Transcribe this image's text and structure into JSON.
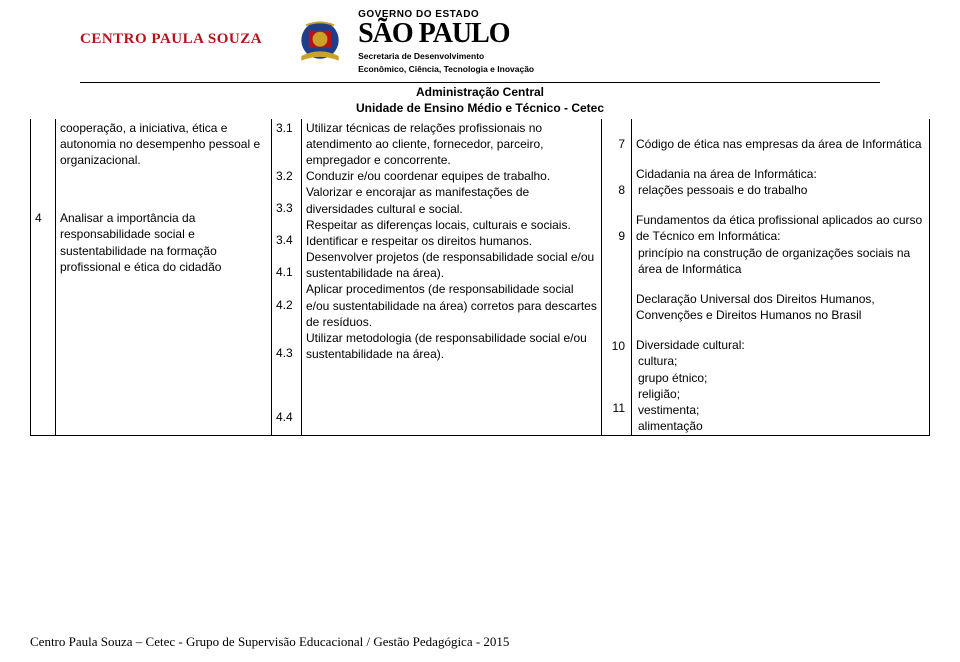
{
  "header": {
    "cps": "CENTRO PAULA SOUZA",
    "gov_line": "GOVERNO DO ESTADO",
    "sao_paulo": "SÃO PAULO",
    "secretaria1": "Secretaria de Desenvolvimento",
    "secretaria2": "Econômico, Ciência, Tecnologia e Inovação"
  },
  "subheader": {
    "line1": "Administração Central",
    "line2": "Unidade de Ensino Médio e Técnico - Cetec"
  },
  "colors": {
    "cps_red": "#b5121b",
    "border": "#000000",
    "text": "#000000",
    "bg": "#ffffff",
    "emblem_blue": "#1f3f8a",
    "emblem_gold": "#c9a227",
    "emblem_red": "#b5121b"
  },
  "table": {
    "col1": {
      "r1_num": "",
      "r1_text": "cooperação, a iniciativa, ética e autonomia no desempenho pessoal e organizacional.",
      "r2_num": "4",
      "r2_text": "Analisar a importância da responsabilidade social e sustentabilidade na formação profissional e ética do cidadão"
    },
    "col2": {
      "i1_num": "3.1",
      "i1_text": "Utilizar técnicas de relações profissionais no atendimento ao cliente, fornecedor, parceiro, empregador e concorrente.",
      "i2_num": "3.2",
      "i2_text": "Conduzir e/ou coordenar equipes de trabalho.",
      "i3_num": "3.3",
      "i3_text": "Valorizar e encorajar as manifestações de diversidades cultural e social.",
      "i4_num": "3.4",
      "i4_text": " Respeitar as diferenças locais, culturais e sociais.",
      "i5_num": "4.1",
      "i5_text": "Identificar e respeitar os direitos humanos.",
      "i6_num": "4.2",
      "i6_text": "Desenvolver projetos (de responsabilidade social e/ou sustentabilidade na área).",
      "i7_num": "4.3",
      "i7_text": "Aplicar procedimentos (de responsabilidade social e/ou sustentabilidade na área) corretos para descartes de resíduos.",
      "i8_num": "4.4",
      "i8_text": "Utilizar metodologia (de responsabilidade social e/ou sustentabilidade na área)."
    },
    "col3": {
      "i1_num": "7",
      "i1_text": "Código de ética nas empresas da área de Informática",
      "i2_num": "8",
      "i2_text_a": "Cidadania na área de Informática:",
      "i2_text_b": " relações pessoais e do trabalho",
      "i3_num": "9",
      "i3_text_a": "Fundamentos da ética profissional aplicados ao curso de Técnico em Informática:",
      "i3_text_b": " princípio na construção de organizações sociais na área de Informática",
      "i4_num": "10",
      "i4_text": "Declaração Universal dos Direitos Humanos, Convenções e Direitos Humanos no Brasil",
      "i5_num": "11",
      "i5_text_a": "Diversidade cultural:",
      "i5_text_b": " cultura;",
      "i5_text_c": " grupo étnico;",
      "i5_text_d": " religião;",
      "i5_text_e": " vestimenta;",
      "i5_text_f": " alimentação"
    }
  },
  "footer": "Centro Paula Souza – Cetec - Grupo de Supervisão Educacional / Gestão Pedagógica - 2015"
}
